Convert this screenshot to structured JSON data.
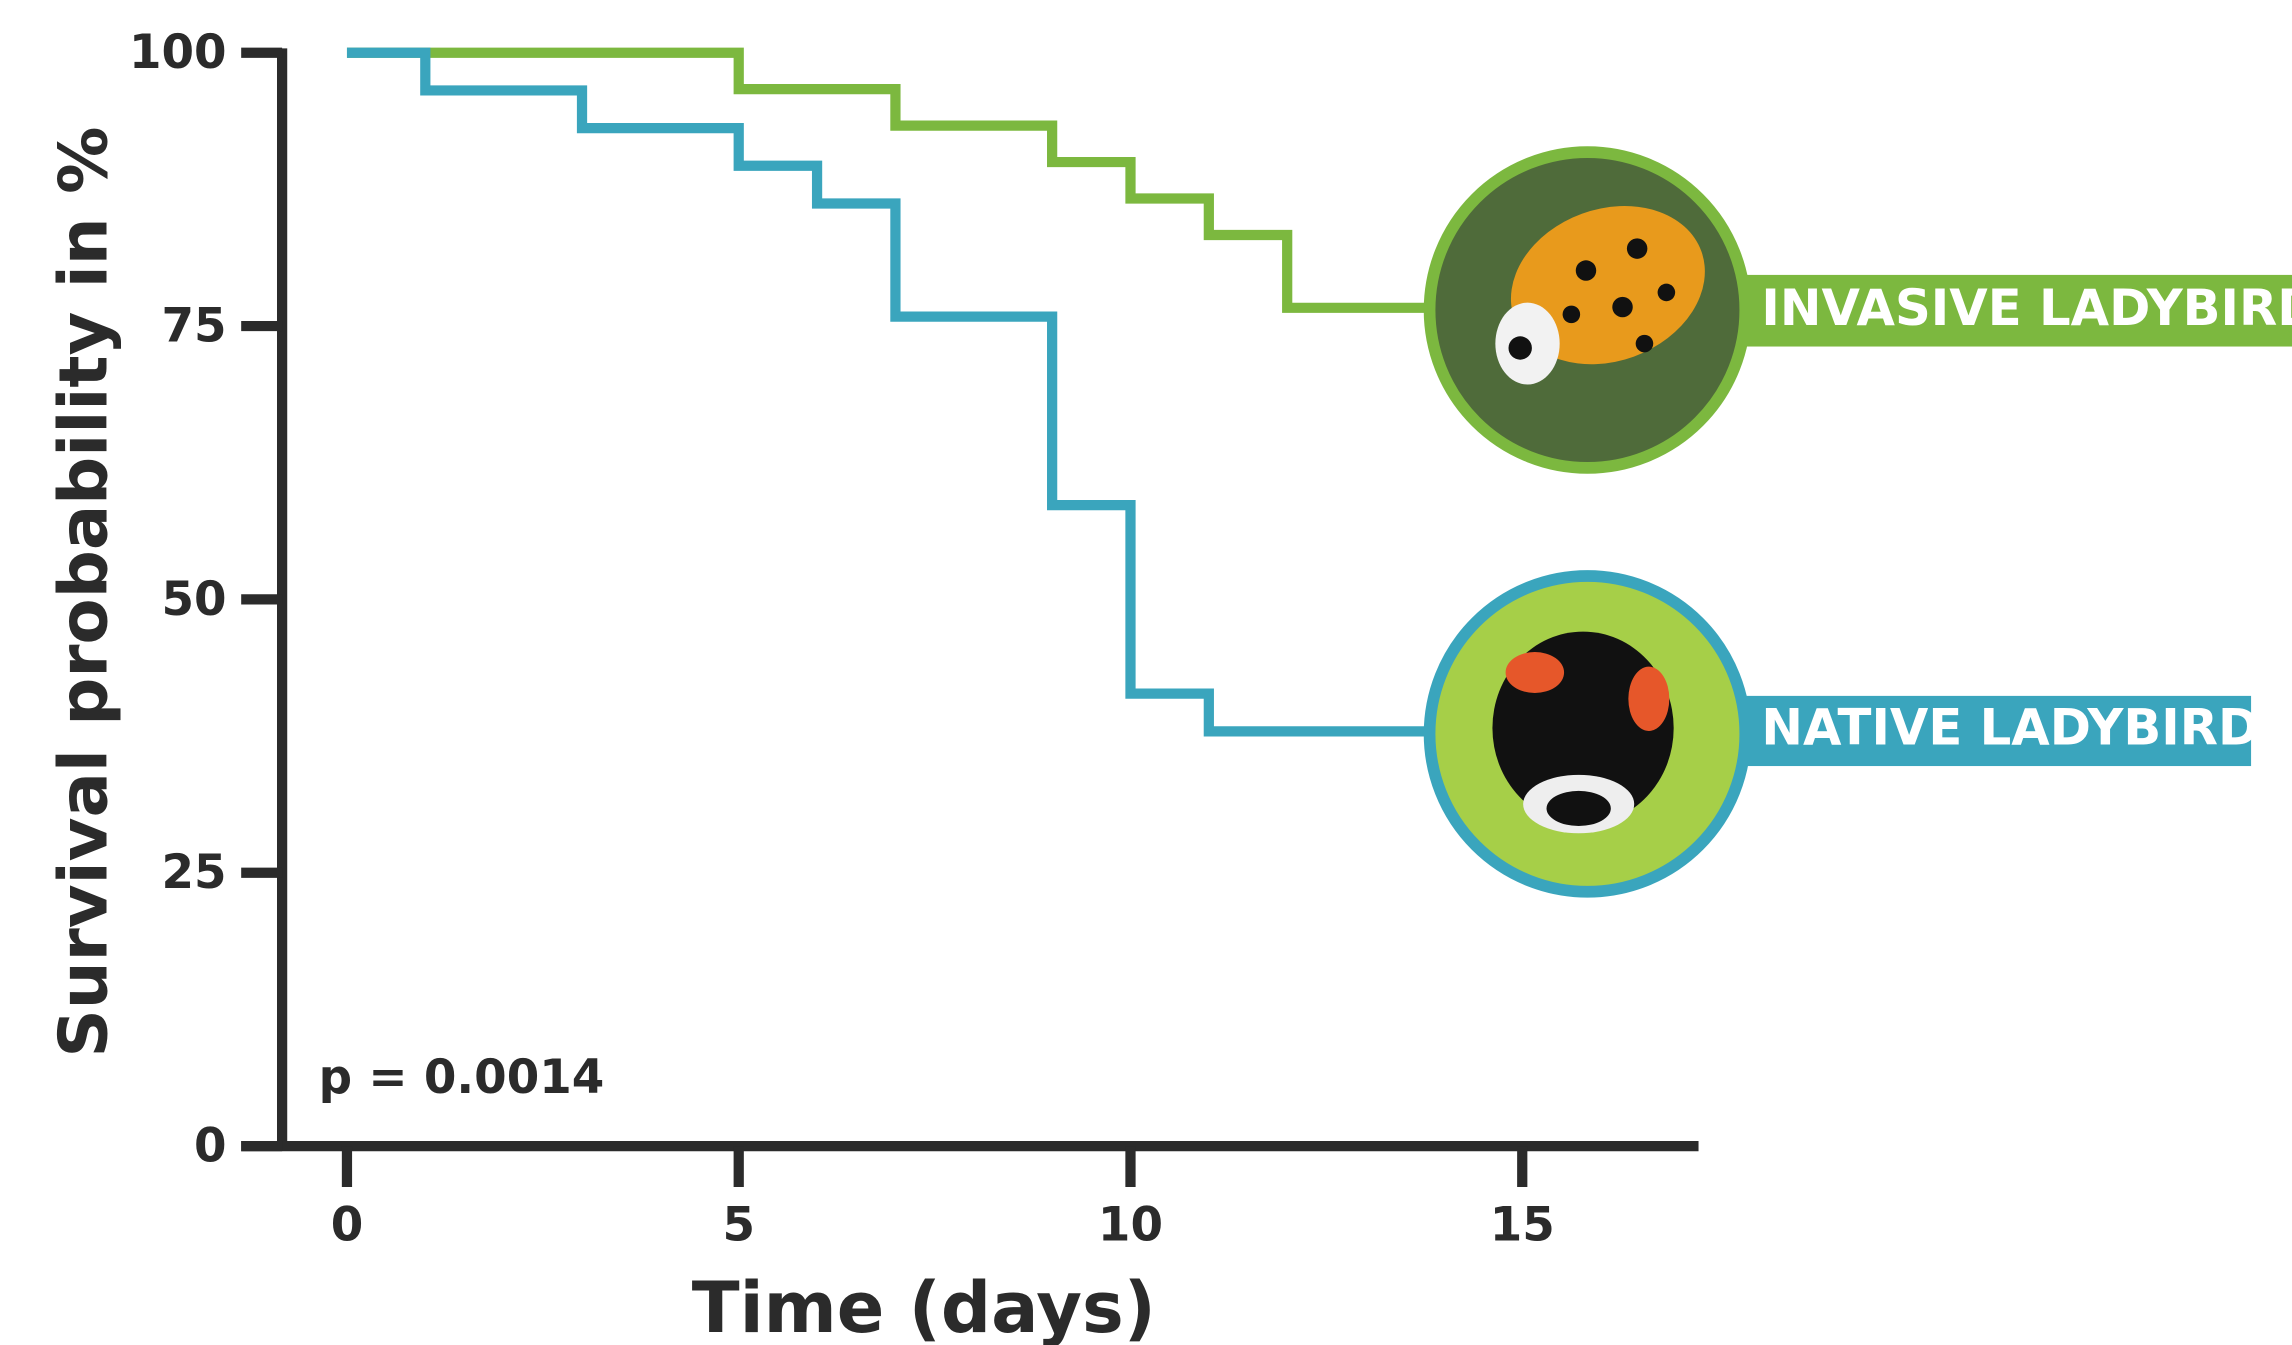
{
  "chart_data": {
    "type": "step",
    "annotation": "p = 0.0014",
    "x_label": "Time (days)",
    "y_label": "Survival probability in %",
    "xlim": [
      -1.35,
      17.25
    ],
    "ylim": [
      0,
      100
    ],
    "xticks": [
      0,
      5,
      10,
      15
    ],
    "yticks": [
      0,
      25,
      50,
      75,
      100
    ],
    "series": [
      {
        "name": "INVASIVE LADYBIRD",
        "color": "#7cb83f",
        "x": [
          0,
          5,
          7,
          9,
          10,
          11,
          12
        ],
        "values": [
          100,
          96.67,
          93.33,
          90,
          86.67,
          83.33,
          76.67
        ]
      },
      {
        "name": "NATIVE LADYBIRD",
        "color": "#3aa5bd",
        "x": [
          0,
          1,
          3,
          5,
          6,
          7,
          9,
          10,
          11
        ],
        "values": [
          100,
          96.55,
          93.1,
          89.66,
          86.21,
          75.86,
          58.62,
          41.38,
          37.93
        ]
      }
    ]
  }
}
